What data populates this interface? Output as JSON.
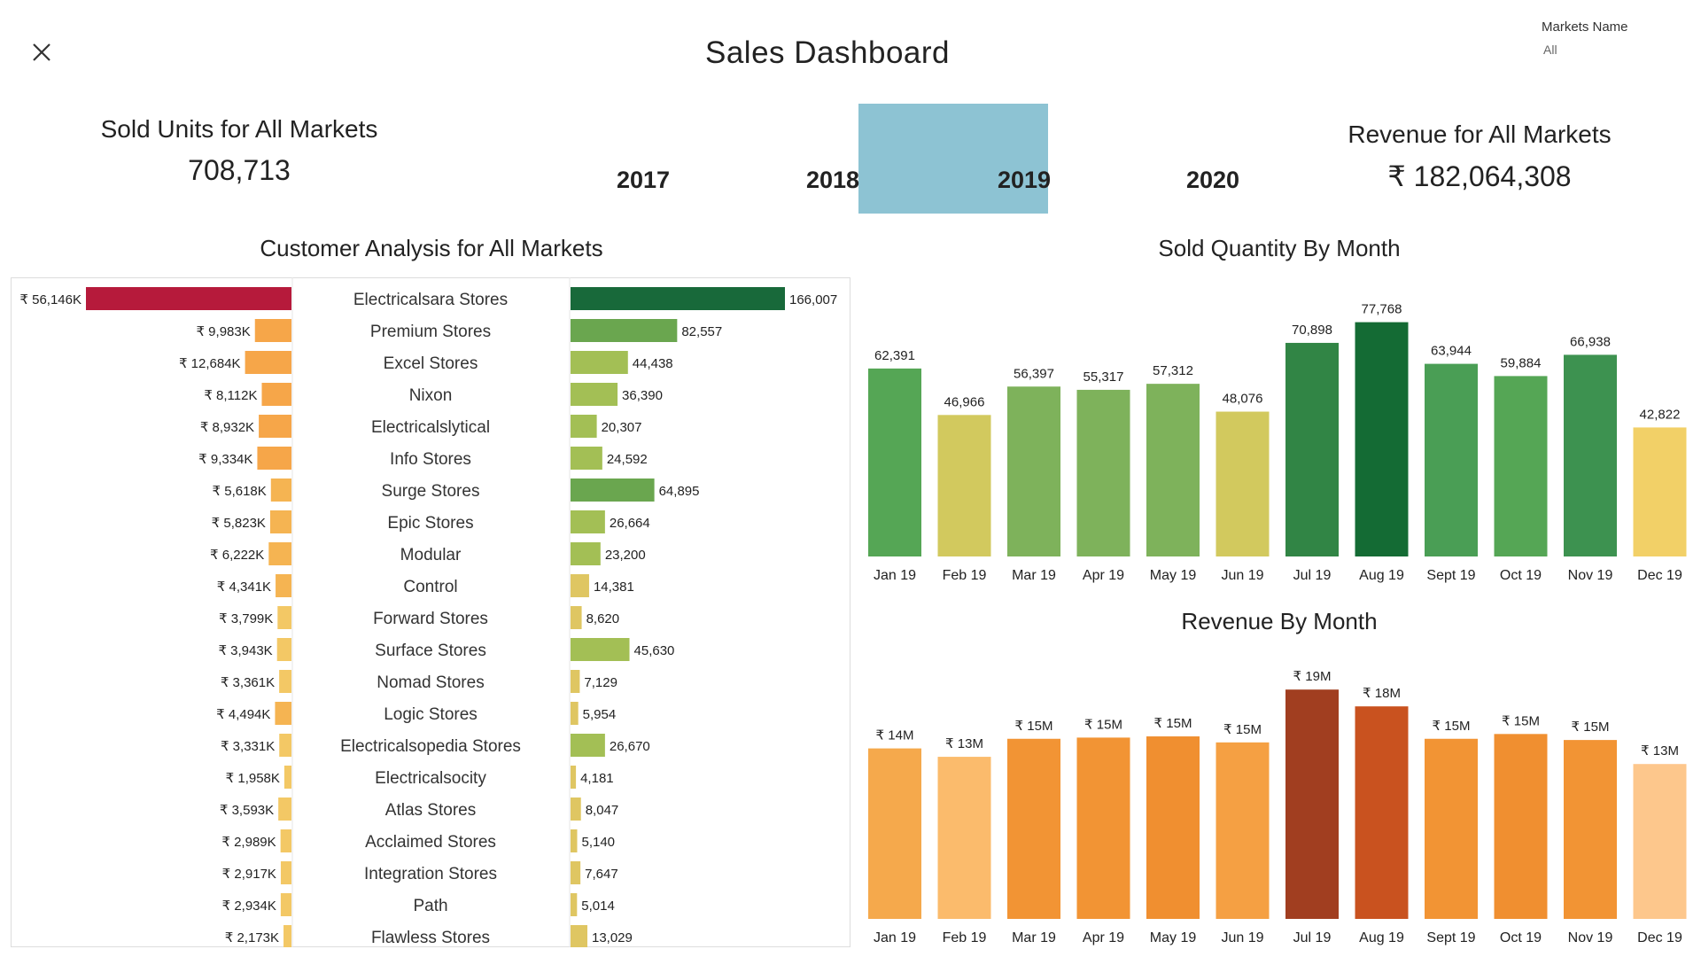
{
  "header": {
    "title": "Sales Dashboard",
    "close_icon": "close-icon",
    "filter_label": "Markets Name",
    "filter_value": "All"
  },
  "kpis": {
    "units_title": "Sold Units for All Markets",
    "units_value": "708,713",
    "revenue_title": "Revenue for All Markets",
    "revenue_value": "₹ 182,064,308"
  },
  "years": {
    "items": [
      "2017",
      "2018",
      "2019",
      "2020"
    ],
    "selected": "2019",
    "highlight_color": "#8dc3d3"
  },
  "customer_title": "Customer Analysis for All Markets",
  "qty_title": "Sold Quantity By Month",
  "rev_title": "Revenue By Month",
  "chart_data": [
    {
      "type": "bar",
      "orientation": "horizontal",
      "title": "Customer Analysis for All Markets",
      "categories": [
        "Electricalsara Stores",
        "Premium Stores",
        "Excel Stores",
        "Nixon",
        "Electricalslytical",
        "Info Stores",
        "Surge Stores",
        "Epic Stores",
        "Modular",
        "Control",
        "Forward Stores",
        "Surface Stores",
        "Nomad Stores",
        "Logic Stores",
        "Electricalsopedia Stores",
        "Electricalsocity",
        "Atlas Stores",
        "Acclaimed Stores",
        "Integration Stores",
        "Path",
        "Flawless Stores"
      ],
      "series": [
        {
          "name": "Revenue",
          "values": [
            56146,
            9983,
            12684,
            8112,
            8932,
            9334,
            5618,
            5823,
            6222,
            4341,
            3799,
            3943,
            3361,
            4494,
            3331,
            1958,
            3593,
            2989,
            2917,
            2934,
            2173
          ],
          "labels": [
            "₹ 56,146K",
            "₹ 9,983K",
            "₹ 12,684K",
            "₹ 8,112K",
            "₹ 8,932K",
            "₹ 9,334K",
            "₹ 5,618K",
            "₹ 5,823K",
            "₹ 6,222K",
            "₹ 4,341K",
            "₹ 3,799K",
            "₹ 3,943K",
            "₹ 3,361K",
            "₹ 4,494K",
            "₹ 3,331K",
            "₹ 1,958K",
            "₹ 3,593K",
            "₹ 2,989K",
            "₹ 2,917K",
            "₹ 2,934K",
            "₹ 2,173K"
          ]
        },
        {
          "name": "Sold Quantity",
          "values": [
            166007,
            82557,
            44438,
            36390,
            20307,
            24592,
            64895,
            26664,
            23200,
            14381,
            8620,
            45630,
            7129,
            5954,
            26670,
            4181,
            8047,
            5140,
            7647,
            5014,
            13029
          ],
          "labels": [
            "166,007",
            "82,557",
            "44,438",
            "36,390",
            "20,307",
            "24,592",
            "64,895",
            "26,664",
            "23,200",
            "14,381",
            "8,620",
            "45,630",
            "7,129",
            "5,954",
            "26,670",
            "4,181",
            "8,047",
            "5,140",
            "7,647",
            "5,014",
            "13,029"
          ]
        }
      ]
    },
    {
      "type": "bar",
      "title": "Sold Quantity By Month",
      "categories": [
        "Jan 19",
        "Feb 19",
        "Mar 19",
        "Apr 19",
        "May 19",
        "Jun 19",
        "Jul 19",
        "Aug 19",
        "Sept 19",
        "Oct 19",
        "Nov 19",
        "Dec 19"
      ],
      "values": [
        62391,
        46966,
        56397,
        55317,
        57312,
        48076,
        70898,
        77768,
        63944,
        59884,
        66938,
        42822
      ],
      "labels": [
        "62,391",
        "46,966",
        "56,397",
        "55,317",
        "57,312",
        "48,076",
        "70,898",
        "77,768",
        "63,944",
        "59,884",
        "66,938",
        "42,822"
      ],
      "colors": [
        "#55a655",
        "#d2c95e",
        "#7eb25b",
        "#7eb25b",
        "#7eb25b",
        "#d2c95e",
        "#318545",
        "#146b34",
        "#4a9e55",
        "#55a655",
        "#3d9250",
        "#f2d067"
      ],
      "ylim": [
        0,
        80000
      ]
    },
    {
      "type": "bar",
      "title": "Revenue By Month",
      "categories": [
        "Jan 19",
        "Feb 19",
        "Mar 19",
        "Apr 19",
        "May 19",
        "Jun 19",
        "Jul 19",
        "Aug 19",
        "Sept 19",
        "Oct 19",
        "Nov 19",
        "Dec 19"
      ],
      "values": [
        14.2,
        13.5,
        15.0,
        15.1,
        15.2,
        14.7,
        19.1,
        17.7,
        15.0,
        15.4,
        14.9,
        12.9
      ],
      "labels": [
        "₹ 14M",
        "₹ 13M",
        "₹ 15M",
        "₹ 15M",
        "₹ 15M",
        "₹ 15M",
        "₹ 19M",
        "₹ 18M",
        "₹ 15M",
        "₹ 15M",
        "₹ 15M",
        "₹ 13M"
      ],
      "colors": [
        "#f5a94c",
        "#fbbb6c",
        "#f29434",
        "#f29434",
        "#f08f30",
        "#f5a043",
        "#a13e20",
        "#c9521f",
        "#f29434",
        "#f08f30",
        "#f29434",
        "#fdc78c"
      ],
      "ylim": [
        0,
        20
      ]
    }
  ],
  "customer_colors": {
    "revenue_top": "#b61a3b",
    "revenue_high": "#f6a649",
    "revenue_mid": "#f5b452",
    "revenue_low": "#f3c865",
    "qty_top": "#18693a",
    "qty_high": "#6aa64f",
    "qty_mid": "#a3bf55",
    "qty_low": "#dfc662"
  }
}
